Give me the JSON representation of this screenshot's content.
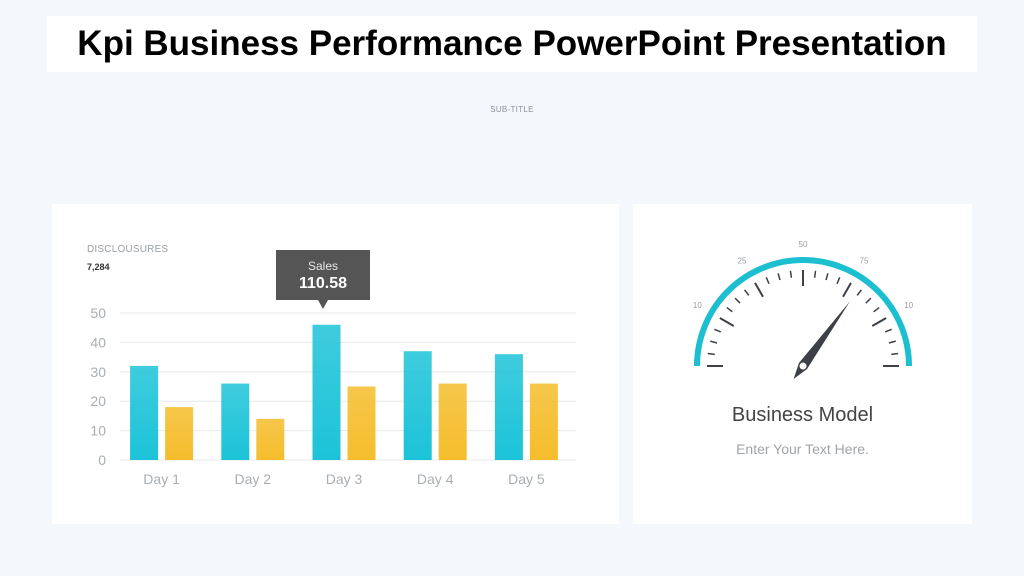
{
  "page": {
    "title": "Kpi Business Performance PowerPoint Presentation",
    "subtitle": "SUB-TITLE"
  },
  "colors": {
    "teal": "#1cc3d8",
    "yellow": "#f5bd2c",
    "gauge_arc": "#1bbfd0",
    "needle": "#3d4046",
    "tooltip_bg": "#555555"
  },
  "left_card": {
    "label": "DISCLOUSURES",
    "value": "7,284"
  },
  "tooltip": {
    "name": "Sales",
    "value": "110.58"
  },
  "chart_data": {
    "type": "bar",
    "categories": [
      "Day 1",
      "Day 2",
      "Day 3",
      "Day 4",
      "Day 5"
    ],
    "series": [
      {
        "values": [
          32,
          26,
          46,
          37,
          36
        ],
        "color": "#1cc3d8"
      },
      {
        "values": [
          18,
          14,
          25,
          26,
          26
        ],
        "color": "#f5bd2c"
      }
    ],
    "yticks": [
      0,
      10,
      20,
      30,
      40,
      50
    ],
    "ylim": [
      0,
      50
    ],
    "grid": true,
    "legend": "none"
  },
  "gauge": {
    "tick_labels": [
      "10",
      "25",
      "50",
      "75",
      "10"
    ],
    "needle_value": 70,
    "title": "Business Model",
    "text": "Enter Your Text Here."
  }
}
